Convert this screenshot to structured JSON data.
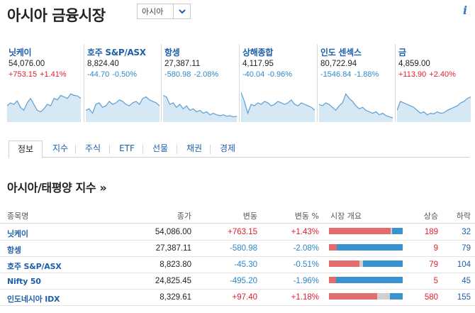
{
  "header": {
    "title": "아시아 금융시장",
    "region_select": "아시아"
  },
  "colors": {
    "up": "#e0202f",
    "down": "#2d88c9",
    "link": "#1d5fa8"
  },
  "tiles": [
    {
      "name": "닛케이",
      "price": "54,076.00",
      "change": "+753.15",
      "pct": "+1.41%",
      "dir": "up",
      "spark": [
        0.45,
        0.55,
        0.5,
        0.62,
        0.4,
        0.3,
        0.55,
        0.7,
        0.5,
        0.3,
        0.25,
        0.35,
        0.5,
        0.45,
        0.7,
        0.65,
        0.8,
        0.75,
        0.7,
        0.85,
        0.8,
        0.78,
        0.7
      ]
    },
    {
      "name": "호주 S&P/ASX",
      "price": "8,824.40",
      "change": "-44.70",
      "pct": "-0.50%",
      "dir": "down",
      "spark": [
        0.3,
        0.35,
        0.2,
        0.5,
        0.55,
        0.4,
        0.45,
        0.6,
        0.5,
        0.55,
        0.65,
        0.6,
        0.5,
        0.45,
        0.55,
        0.6,
        0.5,
        0.7,
        0.75,
        0.65,
        0.6,
        0.55,
        0.45
      ]
    },
    {
      "name": "항셍",
      "price": "27,387.11",
      "change": "-580.98",
      "pct": "-2.08%",
      "dir": "down",
      "spark": [
        0.8,
        0.75,
        0.5,
        0.55,
        0.4,
        0.5,
        0.35,
        0.45,
        0.3,
        0.35,
        0.25,
        0.3,
        0.2,
        0.25,
        0.15,
        0.2,
        0.15,
        0.12,
        0.15,
        0.1,
        0.12,
        0.08,
        0.1
      ]
    },
    {
      "name": "상해종합",
      "price": "4,117.95",
      "change": "-40.04",
      "pct": "-0.96%",
      "dir": "down",
      "spark": [
        0.9,
        0.6,
        0.2,
        0.5,
        0.45,
        0.55,
        0.5,
        0.6,
        0.55,
        0.45,
        0.5,
        0.6,
        0.55,
        0.5,
        0.55,
        0.65,
        0.5,
        0.45,
        0.55,
        0.5,
        0.45,
        0.4,
        0.3
      ]
    },
    {
      "name": "인도 센섹스",
      "price": "80,722.94",
      "change": "-1546.84",
      "pct": "-1.88%",
      "dir": "down",
      "spark": [
        0.5,
        0.45,
        0.55,
        0.5,
        0.4,
        0.3,
        0.45,
        0.55,
        0.85,
        0.7,
        0.6,
        0.45,
        0.35,
        0.4,
        0.3,
        0.25,
        0.2,
        0.25,
        0.15,
        0.2,
        0.12,
        0.08,
        0.05
      ]
    },
    {
      "name": "금",
      "price": "4,859.00",
      "change": "+113.90",
      "pct": "+2.40%",
      "dir": "up",
      "spark": [
        0.3,
        0.6,
        0.55,
        0.5,
        0.45,
        0.4,
        0.3,
        0.2,
        0.25,
        0.15,
        0.2,
        0.18,
        0.25,
        0.2,
        0.22,
        0.3,
        0.35,
        0.4,
        0.45,
        0.55,
        0.6,
        0.7,
        0.75
      ]
    }
  ],
  "tabs": [
    "정보",
    "지수",
    "주식",
    "ETF",
    "선물",
    "채권",
    "경제"
  ],
  "active_tab": "정보",
  "section": {
    "title": "아시아/태평양 지수 »"
  },
  "table": {
    "columns": [
      "종목명",
      "종가",
      "변동",
      "변동 %",
      "시장 개요",
      "상승",
      "하락"
    ],
    "rows": [
      {
        "name": "닛케이",
        "close": "54,086.00",
        "change": "+763.15",
        "pct": "+1.43%",
        "dir": "up",
        "adv": "189",
        "dec": "32",
        "unch": "4"
      },
      {
        "name": "항셍",
        "close": "27,387.11",
        "change": "-580.98",
        "pct": "-2.08%",
        "dir": "down",
        "adv": "9",
        "dec": "79",
        "unch": "0"
      },
      {
        "name": "호주 S&P/ASX",
        "close": "8,823.80",
        "change": "-45.30",
        "pct": "-0.51%",
        "dir": "down",
        "adv": "79",
        "dec": "104",
        "unch": "9"
      },
      {
        "name": "Nifty 50",
        "close": "24,825.45",
        "change": "-495.20",
        "pct": "-1.96%",
        "dir": "down",
        "adv": "5",
        "dec": "45",
        "unch": "0"
      },
      {
        "name": "인도네시아 IDX",
        "close": "8,329.61",
        "change": "+97.40",
        "pct": "+1.18%",
        "dir": "up",
        "adv": "580",
        "dec": "155",
        "unch": "150"
      }
    ]
  }
}
